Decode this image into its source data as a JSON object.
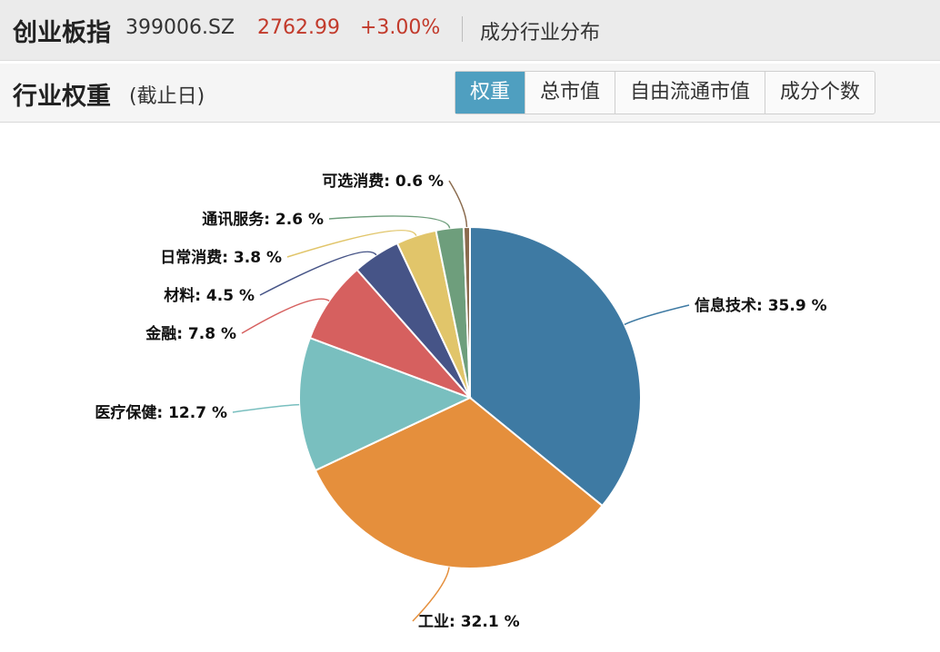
{
  "header": {
    "index_name": "创业板指",
    "code": "399006.SZ",
    "price": "2762.99",
    "change": "+3.00%",
    "section": "成分行业分布"
  },
  "subheader": {
    "title": "行业权重",
    "subtitle": "(截止日)"
  },
  "tabs": [
    {
      "label": "权重",
      "active": true
    },
    {
      "label": "总市值",
      "active": false
    },
    {
      "label": "自由流通市值",
      "active": false
    },
    {
      "label": "成分个数",
      "active": false
    }
  ],
  "chart_data": {
    "type": "pie",
    "title": "",
    "slices": [
      {
        "name": "信息技术",
        "value": 35.9,
        "label": "信息技术: 35.9 %",
        "color": "#3e7aa3"
      },
      {
        "name": "工业",
        "value": 32.1,
        "label": "工业: 32.1 %",
        "color": "#e58f3c"
      },
      {
        "name": "医疗保健",
        "value": 12.7,
        "label": "医疗保健: 12.7 %",
        "color": "#79bfbf"
      },
      {
        "name": "金融",
        "value": 7.8,
        "label": "金融: 7.8 %",
        "color": "#d6605f"
      },
      {
        "name": "材料",
        "value": 4.5,
        "label": "材料: 4.5 %",
        "color": "#465487"
      },
      {
        "name": "日常消费",
        "value": 3.8,
        "label": "日常消费: 3.8 %",
        "color": "#e1c56a"
      },
      {
        "name": "通讯服务",
        "value": 2.6,
        "label": "通讯服务: 2.6 %",
        "color": "#6e9e7c"
      },
      {
        "name": "可选消费",
        "value": 0.6,
        "label": "可选消费: 0.6 %",
        "color": "#8a6b4e"
      }
    ]
  }
}
